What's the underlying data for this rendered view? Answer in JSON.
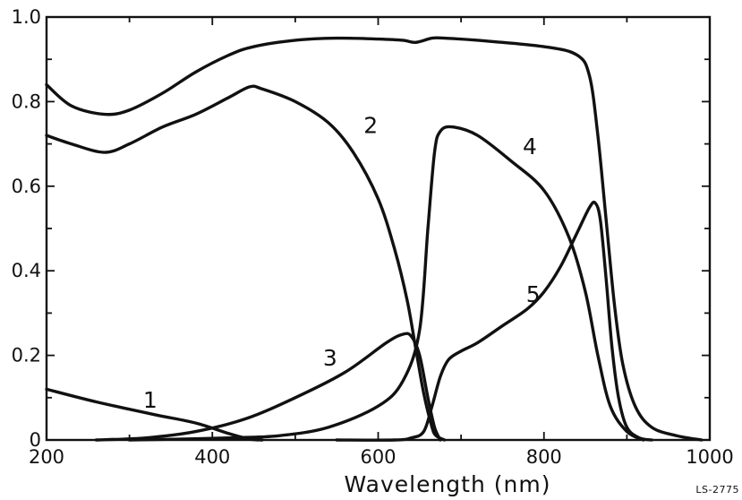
{
  "chart_data": {
    "type": "line",
    "title": "",
    "xlabel": "Wavelength  (nm)",
    "ylabel": "",
    "xlim": [
      200,
      1000
    ],
    "ylim": [
      0,
      1.0
    ],
    "x_ticks": [
      200,
      400,
      600,
      800,
      1000
    ],
    "x_tick_labels": [
      "200",
      "400",
      "600",
      "800",
      "1000"
    ],
    "y_ticks": [
      0,
      0.2,
      0.4,
      0.6,
      0.8,
      1.0
    ],
    "y_tick_labels": [
      "0",
      "0.2",
      "0.4",
      "0.6",
      "0.8",
      "1.0"
    ],
    "grid": false,
    "legend": "none",
    "series": [
      {
        "name": "",
        "label": "",
        "label_at": null,
        "x": [
          200,
          230,
          270,
          300,
          340,
          380,
          420,
          450,
          500,
          550,
          600,
          630,
          645,
          665,
          680,
          720,
          800,
          840,
          855,
          865,
          875,
          885,
          895,
          910,
          930,
          960,
          990
        ],
        "y": [
          0.84,
          0.79,
          0.77,
          0.78,
          0.82,
          0.87,
          0.91,
          0.93,
          0.945,
          0.95,
          0.948,
          0.945,
          0.94,
          0.95,
          0.95,
          0.945,
          0.93,
          0.91,
          0.86,
          0.72,
          0.52,
          0.32,
          0.18,
          0.08,
          0.03,
          0.01,
          0.0
        ]
      },
      {
        "name": "",
        "label": "2",
        "label_at": [
          591,
          0.745
        ],
        "x": [
          200,
          230,
          270,
          300,
          340,
          380,
          420,
          445,
          460,
          500,
          540,
          570,
          600,
          620,
          635,
          645,
          655,
          665,
          670,
          680
        ],
        "y": [
          0.72,
          0.7,
          0.68,
          0.7,
          0.74,
          0.77,
          0.81,
          0.835,
          0.83,
          0.8,
          0.75,
          0.68,
          0.57,
          0.45,
          0.33,
          0.22,
          0.11,
          0.03,
          0.01,
          0.0
        ]
      },
      {
        "name": "",
        "label": "1",
        "label_at": [
          325,
          0.095
        ],
        "x": [
          200,
          260,
          330,
          380,
          420,
          445,
          460
        ],
        "y": [
          0.12,
          0.09,
          0.06,
          0.04,
          0.015,
          0.002,
          0.0
        ]
      },
      {
        "name": "",
        "label": "3",
        "label_at": [
          542,
          0.195
        ],
        "x": [
          260,
          320,
          380,
          440,
          500,
          560,
          610,
          630,
          640,
          650,
          660,
          668,
          675
        ],
        "y": [
          0.0,
          0.005,
          0.02,
          0.05,
          0.1,
          0.16,
          0.23,
          0.25,
          0.245,
          0.2,
          0.1,
          0.03,
          0.0
        ]
      },
      {
        "name": "",
        "label": "4",
        "label_at": [
          783,
          0.695
        ],
        "x": [
          300,
          360,
          420,
          480,
          540,
          600,
          630,
          650,
          660,
          668,
          675,
          690,
          720,
          760,
          800,
          830,
          850,
          865,
          880,
          900,
          920
        ],
        "y": [
          0.0,
          0.002,
          0.005,
          0.01,
          0.03,
          0.08,
          0.14,
          0.26,
          0.5,
          0.68,
          0.73,
          0.74,
          0.72,
          0.66,
          0.59,
          0.48,
          0.35,
          0.2,
          0.08,
          0.02,
          0.0
        ]
      },
      {
        "name": "",
        "label": "5",
        "label_at": [
          787,
          0.345
        ],
        "x": [
          550,
          620,
          640,
          655,
          665,
          675,
          685,
          700,
          720,
          750,
          780,
          800,
          820,
          840,
          855,
          862,
          868,
          875,
          882,
          890,
          900,
          915,
          930
        ],
        "y": [
          0.0,
          0.0,
          0.005,
          0.02,
          0.08,
          0.15,
          0.19,
          0.21,
          0.23,
          0.27,
          0.31,
          0.35,
          0.41,
          0.49,
          0.55,
          0.56,
          0.52,
          0.38,
          0.22,
          0.1,
          0.03,
          0.005,
          0.0
        ]
      }
    ]
  },
  "figure_ref": "LS-2775"
}
